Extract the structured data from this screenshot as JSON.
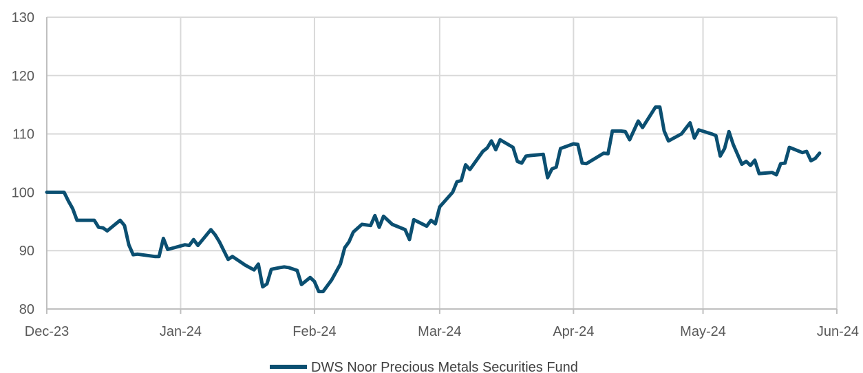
{
  "chart_data": {
    "type": "line",
    "title": "",
    "xlabel": "",
    "ylabel": "",
    "ylim": [
      80,
      130
    ],
    "yticks": [
      80,
      90,
      100,
      110,
      120,
      130
    ],
    "xlim": [
      "2023-12-01",
      "2024-06-01"
    ],
    "xticks": [
      {
        "date": "2023-12-01",
        "label": "Dec-23"
      },
      {
        "date": "2024-01-01",
        "label": "Jan-24"
      },
      {
        "date": "2024-02-01",
        "label": "Feb-24"
      },
      {
        "date": "2024-03-01",
        "label": "Mar-24"
      },
      {
        "date": "2024-04-01",
        "label": "Apr-24"
      },
      {
        "date": "2024-05-01",
        "label": "May-24"
      },
      {
        "date": "2024-06-01",
        "label": "Jun-24"
      }
    ],
    "grid": true,
    "legend_position": "bottom-center",
    "series": [
      {
        "name": "DWS Noor Precious Metals Securities Fund",
        "color": "#0b4f71",
        "points": [
          [
            "2023-12-01",
            100.0
          ],
          [
            "2023-12-05",
            100.0
          ],
          [
            "2023-12-06",
            98.5
          ],
          [
            "2023-12-07",
            97.2
          ],
          [
            "2023-12-08",
            95.2
          ],
          [
            "2023-12-12",
            95.2
          ],
          [
            "2023-12-13",
            94.0
          ],
          [
            "2023-12-14",
            93.9
          ],
          [
            "2023-12-15",
            93.4
          ],
          [
            "2023-12-18",
            95.2
          ],
          [
            "2023-12-19",
            94.3
          ],
          [
            "2023-12-20",
            91.0
          ],
          [
            "2023-12-21",
            89.3
          ],
          [
            "2023-12-22",
            89.4
          ],
          [
            "2023-12-26",
            89.0
          ],
          [
            "2023-12-27",
            89.0
          ],
          [
            "2023-12-28",
            92.1
          ],
          [
            "2023-12-29",
            90.2
          ],
          [
            "2024-01-02",
            91.0
          ],
          [
            "2024-01-03",
            90.9
          ],
          [
            "2024-01-04",
            91.9
          ],
          [
            "2024-01-05",
            90.9
          ],
          [
            "2024-01-08",
            93.6
          ],
          [
            "2024-01-09",
            92.7
          ],
          [
            "2024-01-10",
            91.5
          ],
          [
            "2024-01-11",
            90.0
          ],
          [
            "2024-01-12",
            88.5
          ],
          [
            "2024-01-13",
            89.0
          ],
          [
            "2024-01-16",
            87.5
          ],
          [
            "2024-01-18",
            86.7
          ],
          [
            "2024-01-19",
            87.7
          ],
          [
            "2024-01-20",
            83.8
          ],
          [
            "2024-01-21",
            84.3
          ],
          [
            "2024-01-22",
            86.8
          ],
          [
            "2024-01-24",
            87.1
          ],
          [
            "2024-01-25",
            87.2
          ],
          [
            "2024-01-26",
            87.1
          ],
          [
            "2024-01-28",
            86.6
          ],
          [
            "2024-01-29",
            84.2
          ],
          [
            "2024-01-31",
            85.4
          ],
          [
            "2024-02-01",
            84.7
          ],
          [
            "2024-02-02",
            83.0
          ],
          [
            "2024-02-03",
            83.0
          ],
          [
            "2024-02-05",
            85.0
          ],
          [
            "2024-02-07",
            87.7
          ],
          [
            "2024-02-08",
            90.5
          ],
          [
            "2024-02-09",
            91.5
          ],
          [
            "2024-02-10",
            93.2
          ],
          [
            "2024-02-12",
            94.5
          ],
          [
            "2024-02-14",
            94.3
          ],
          [
            "2024-02-15",
            96.0
          ],
          [
            "2024-02-16",
            94.0
          ],
          [
            "2024-02-17",
            95.9
          ],
          [
            "2024-02-19",
            94.5
          ],
          [
            "2024-02-22",
            93.6
          ],
          [
            "2024-02-23",
            91.9
          ],
          [
            "2024-02-24",
            95.3
          ],
          [
            "2024-02-27",
            94.2
          ],
          [
            "2024-02-28",
            95.2
          ],
          [
            "2024-02-29",
            94.6
          ],
          [
            "2024-03-01",
            97.5
          ],
          [
            "2024-03-04",
            100.0
          ],
          [
            "2024-03-05",
            101.8
          ],
          [
            "2024-03-06",
            102.0
          ],
          [
            "2024-03-07",
            104.7
          ],
          [
            "2024-03-08",
            103.9
          ],
          [
            "2024-03-11",
            107.0
          ],
          [
            "2024-03-12",
            107.6
          ],
          [
            "2024-03-13",
            108.8
          ],
          [
            "2024-03-14",
            107.3
          ],
          [
            "2024-03-15",
            109.0
          ],
          [
            "2024-03-18",
            107.7
          ],
          [
            "2024-03-19",
            105.3
          ],
          [
            "2024-03-20",
            105.0
          ],
          [
            "2024-03-21",
            106.2
          ],
          [
            "2024-03-22",
            106.3
          ],
          [
            "2024-03-25",
            106.5
          ],
          [
            "2024-03-26",
            102.5
          ],
          [
            "2024-03-27",
            104.0
          ],
          [
            "2024-03-28",
            104.3
          ],
          [
            "2024-03-29",
            107.5
          ],
          [
            "2024-04-01",
            108.3
          ],
          [
            "2024-04-02",
            108.2
          ],
          [
            "2024-04-03",
            105.0
          ],
          [
            "2024-04-04",
            104.9
          ],
          [
            "2024-04-08",
            106.7
          ],
          [
            "2024-04-09",
            106.6
          ],
          [
            "2024-04-10",
            110.5
          ],
          [
            "2024-04-12",
            110.5
          ],
          [
            "2024-04-13",
            110.4
          ],
          [
            "2024-04-14",
            109.0
          ],
          [
            "2024-04-16",
            112.2
          ],
          [
            "2024-04-17",
            111.1
          ],
          [
            "2024-04-20",
            114.6
          ],
          [
            "2024-04-21",
            114.6
          ],
          [
            "2024-04-22",
            110.5
          ],
          [
            "2024-04-23",
            108.8
          ],
          [
            "2024-04-26",
            110.0
          ],
          [
            "2024-04-28",
            111.9
          ],
          [
            "2024-04-29",
            109.3
          ],
          [
            "2024-04-30",
            110.7
          ],
          [
            "2024-05-03",
            110.0
          ],
          [
            "2024-05-04",
            109.7
          ],
          [
            "2024-05-05",
            106.2
          ],
          [
            "2024-05-06",
            107.5
          ],
          [
            "2024-05-07",
            110.4
          ],
          [
            "2024-05-08",
            108.2
          ],
          [
            "2024-05-10",
            104.8
          ],
          [
            "2024-05-11",
            105.3
          ],
          [
            "2024-05-12",
            104.6
          ],
          [
            "2024-05-13",
            105.5
          ],
          [
            "2024-05-14",
            103.2
          ],
          [
            "2024-05-17",
            103.4
          ],
          [
            "2024-05-18",
            103.0
          ],
          [
            "2024-05-19",
            104.9
          ],
          [
            "2024-05-20",
            105.0
          ],
          [
            "2024-05-21",
            107.7
          ],
          [
            "2024-05-24",
            106.8
          ],
          [
            "2024-05-25",
            107.0
          ],
          [
            "2024-05-26",
            105.4
          ],
          [
            "2024-05-27",
            105.8
          ],
          [
            "2024-05-28",
            106.7
          ]
        ]
      }
    ]
  }
}
